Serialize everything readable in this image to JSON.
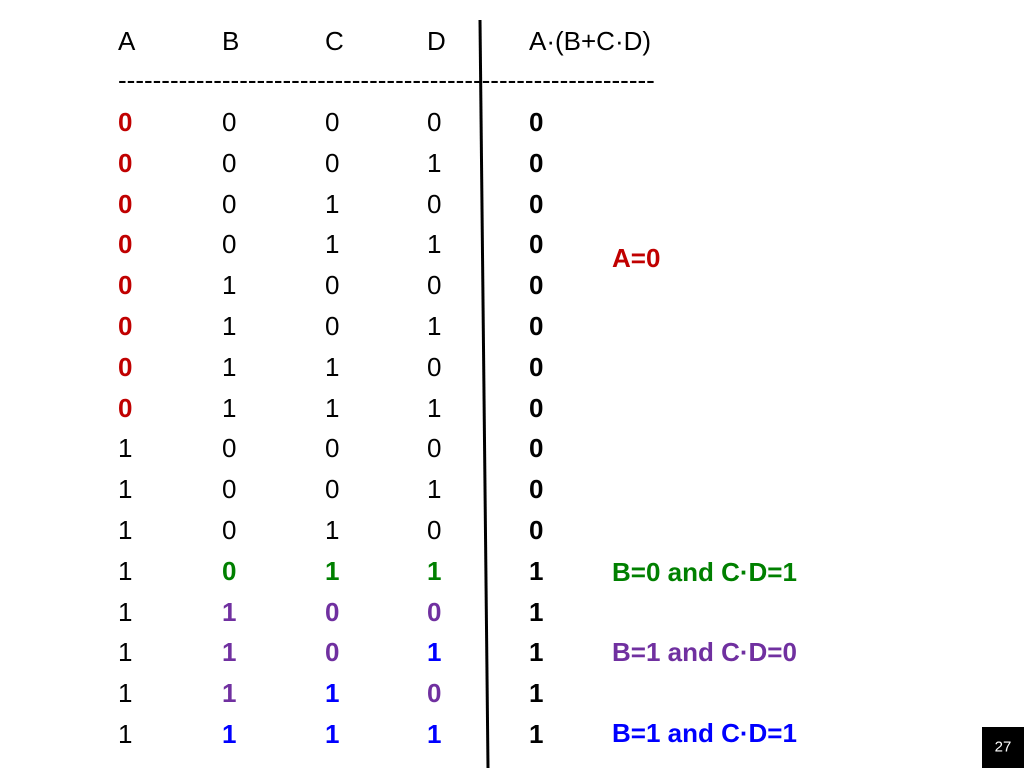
{
  "table": {
    "header": [
      "A",
      "B",
      "C",
      "D",
      "A·(B+C·D)"
    ],
    "separator": "--------------------------------------------------------------",
    "rows": [
      [
        "0",
        "0",
        "0",
        "0",
        "0"
      ],
      [
        "0",
        "0",
        "0",
        "1",
        "0"
      ],
      [
        "0",
        "0",
        "1",
        "0",
        "0"
      ],
      [
        "0",
        "0",
        "1",
        "1",
        "0"
      ],
      [
        "0",
        "1",
        "0",
        "0",
        "0"
      ],
      [
        "0",
        "1",
        "0",
        "1",
        "0"
      ],
      [
        "0",
        "1",
        "1",
        "0",
        "0"
      ],
      [
        "0",
        "1",
        "1",
        "1",
        "0"
      ],
      [
        "1",
        "0",
        "0",
        "0",
        "0"
      ],
      [
        "1",
        "0",
        "0",
        "1",
        "0"
      ],
      [
        "1",
        "0",
        "1",
        "0",
        "0"
      ],
      [
        "1",
        "0",
        "1",
        "1",
        "1"
      ],
      [
        "1",
        "1",
        "0",
        "0",
        "1"
      ],
      [
        "1",
        "1",
        "0",
        "1",
        "1"
      ],
      [
        "1",
        "1",
        "1",
        "0",
        "1"
      ],
      [
        "1",
        "1",
        "1",
        "1",
        "1"
      ]
    ]
  },
  "annotations": [
    "A=0",
    "B=0 and C·D=1",
    "B=1 and C·D=0",
    "B=1 and C·D=1"
  ],
  "page_number": "27"
}
